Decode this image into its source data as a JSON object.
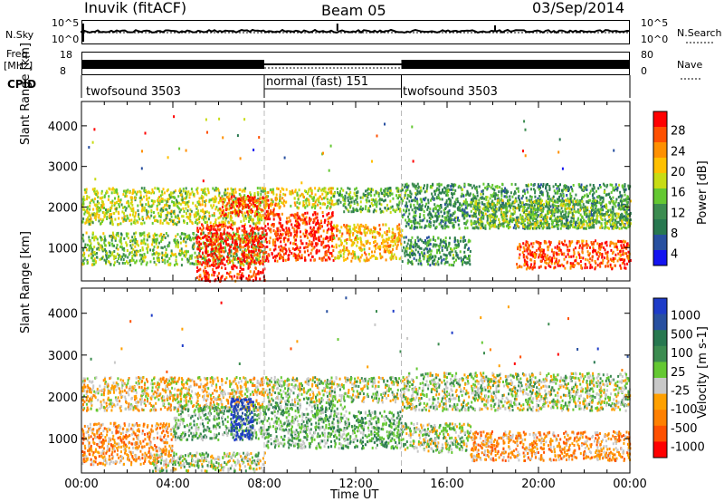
{
  "header": {
    "station": "Inuvik (fitACF)",
    "beam": "Beam 05",
    "date": "03/Sep/2014"
  },
  "top_panels": {
    "nsky_label": "N.Sky",
    "nsky_ticks": [
      "10^5",
      "10^0"
    ],
    "nsearch_label": "N.Search",
    "nsearch_ticks": [
      "10^5",
      "10^0"
    ],
    "freq_label_1": "Freq.",
    "freq_label_2": "[MHz]",
    "freq_ticks": [
      "18",
      "8"
    ],
    "nave_label": "Nave",
    "nave_ticks": [
      "80",
      "0"
    ],
    "cpid_label": "CPID",
    "cpid_segments": [
      {
        "label": "twofsound 3503",
        "start": "00:00",
        "end": "08:00"
      },
      {
        "label": "normal (fast) 151",
        "start": "08:00",
        "end": "14:00"
      },
      {
        "label": "twofsound 3503",
        "start": "14:00",
        "end": "24:00"
      }
    ]
  },
  "axes": {
    "ylabel": "Slant Range [km]",
    "yticks": [
      "4000",
      "3000",
      "2000",
      "1000"
    ],
    "xticks": [
      "00:00",
      "04:00",
      "08:00",
      "12:00",
      "16:00",
      "20:00",
      "00:00"
    ],
    "xlabel": "Time UT"
  },
  "power_colorbar": {
    "label": "Power [dB]",
    "ticks": [
      "28",
      "24",
      "20",
      "16",
      "12",
      "8",
      "4"
    ],
    "colors": [
      "#ff0000",
      "#ff5000",
      "#ff9000",
      "#ffc000",
      "#c8dc14",
      "#64c832",
      "#3c8c50",
      "#287850",
      "#2850a0",
      "#1414f0"
    ]
  },
  "velocity_colorbar": {
    "label": "Velocity [m s-1]",
    "ticks": [
      "1000",
      "500",
      "100",
      "25",
      "-25",
      "-100",
      "-500",
      "-1000"
    ],
    "colors": [
      "#1e3cc8",
      "#2850a0",
      "#287850",
      "#3c8c50",
      "#64c832",
      "#c8c8c8",
      "#ffa000",
      "#ff8000",
      "#ff5000",
      "#ff0000"
    ]
  },
  "chart_data": [
    {
      "type": "heatmap",
      "title": "Power",
      "xlabel": "Time UT",
      "ylabel": "Slant Range [km]",
      "xlim": [
        0,
        24
      ],
      "ylim": [
        180,
        4600
      ],
      "colorbar_label": "Power [dB]",
      "colorbar_range": [
        0,
        30
      ],
      "blobs": [
        {
          "t0": 0.0,
          "t1": 8.0,
          "r0": 1600,
          "r1": 2500,
          "v": 16
        },
        {
          "t0": 0.0,
          "t1": 8.0,
          "r0": 600,
          "r1": 1400,
          "v": 14
        },
        {
          "t0": 5.0,
          "t1": 8.0,
          "r0": 200,
          "r1": 1600,
          "v": 28
        },
        {
          "t0": 6.0,
          "t1": 8.5,
          "r0": 1800,
          "r1": 2300,
          "v": 26
        },
        {
          "t0": 8.0,
          "t1": 11.0,
          "r0": 700,
          "r1": 1900,
          "v": 27
        },
        {
          "t0": 8.0,
          "t1": 11.0,
          "r0": 2000,
          "r1": 2500,
          "v": 18
        },
        {
          "t0": 11.0,
          "t1": 14.0,
          "r0": 700,
          "r1": 1600,
          "v": 20
        },
        {
          "t0": 11.0,
          "t1": 14.0,
          "r0": 1900,
          "r1": 2500,
          "v": 12
        },
        {
          "t0": 14.0,
          "t1": 24.0,
          "r0": 1500,
          "r1": 2600,
          "v": 10
        },
        {
          "t0": 14.0,
          "t1": 17.0,
          "r0": 600,
          "r1": 1300,
          "v": 10
        },
        {
          "t0": 19.0,
          "t1": 24.0,
          "r0": 500,
          "r1": 1200,
          "v": 26
        },
        {
          "t0": 17.0,
          "t1": 24.0,
          "r0": 1500,
          "r1": 2200,
          "v": 14
        }
      ]
    },
    {
      "type": "heatmap",
      "title": "Velocity",
      "xlabel": "Time UT",
      "ylabel": "Slant Range [km]",
      "xlim": [
        0,
        24
      ],
      "ylim": [
        180,
        4600
      ],
      "colorbar_label": "Velocity [m s-1]",
      "colorbar_range": [
        -1000,
        1000
      ],
      "blobs": [
        {
          "t0": 0.0,
          "t1": 4.0,
          "r0": 400,
          "r1": 1400,
          "v": -400
        },
        {
          "t0": 0.0,
          "t1": 8.0,
          "r0": 1700,
          "r1": 2500,
          "v": -200
        },
        {
          "t0": 4.0,
          "t1": 8.0,
          "r0": 1000,
          "r1": 1800,
          "v": 150
        },
        {
          "t0": 6.5,
          "t1": 7.5,
          "r0": 1000,
          "r1": 2000,
          "v": 900
        },
        {
          "t0": 8.0,
          "t1": 11.5,
          "r0": 800,
          "r1": 1900,
          "v": 150
        },
        {
          "t0": 8.0,
          "t1": 14.0,
          "r0": 1900,
          "r1": 2500,
          "v": 0
        },
        {
          "t0": 11.5,
          "t1": 14.0,
          "r0": 800,
          "r1": 1700,
          "v": 200
        },
        {
          "t0": 14.0,
          "t1": 24.0,
          "r0": 1700,
          "r1": 2600,
          "v": 0
        },
        {
          "t0": 14.0,
          "t1": 17.0,
          "r0": 700,
          "r1": 1400,
          "v": 0
        },
        {
          "t0": 17.0,
          "t1": 24.0,
          "r0": 500,
          "r1": 1200,
          "v": -400
        },
        {
          "t0": 3.0,
          "t1": 8.0,
          "r0": 250,
          "r1": 700,
          "v": 0
        }
      ]
    }
  ]
}
